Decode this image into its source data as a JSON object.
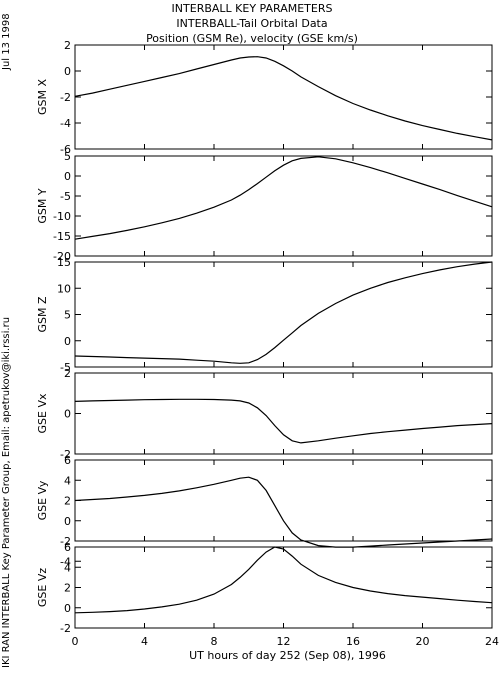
{
  "header": {
    "title_lines": [
      "INTERBALL KEY PARAMETERS",
      "INTERBALL-Tail Orbital Data",
      "Position (GSM Re), velocity (GSE km/s)"
    ]
  },
  "side": {
    "date": "Jul 13 1998",
    "credit": "IKI RAN INTERBALL Key Parameter Group, Email: apetrukov@iki.rssi.ru"
  },
  "chart_data": {
    "type": "line",
    "xlabel": "UT hours of day 252 (Sep 08), 1996",
    "xlim": [
      0,
      24
    ],
    "xticks": [
      0,
      4,
      8,
      12,
      16,
      20,
      24
    ],
    "x": [
      0,
      1,
      2,
      3,
      4,
      5,
      6,
      7,
      8,
      9,
      9.5,
      10,
      10.5,
      11,
      11.5,
      12,
      12.5,
      13,
      14,
      15,
      16,
      17,
      18,
      19,
      20,
      21,
      22,
      23,
      24
    ],
    "panels": [
      {
        "ylabel": "GSM X",
        "ylim": [
          -6,
          2
        ],
        "yticks": [
          2,
          0,
          -2,
          -4,
          -6
        ],
        "values": [
          -1.95,
          -1.7,
          -1.4,
          -1.1,
          -0.8,
          -0.5,
          -0.2,
          0.15,
          0.5,
          0.85,
          1.0,
          1.08,
          1.1,
          1.0,
          0.75,
          0.4,
          0.0,
          -0.45,
          -1.2,
          -1.9,
          -2.5,
          -3.0,
          -3.45,
          -3.85,
          -4.2,
          -4.5,
          -4.8,
          -5.05,
          -5.3
        ]
      },
      {
        "ylabel": "GSM Y",
        "ylim": [
          -20,
          5
        ],
        "yticks": [
          5,
          0,
          -5,
          -10,
          -15,
          -20
        ],
        "values": [
          -15.8,
          -15.1,
          -14.4,
          -13.6,
          -12.7,
          -11.7,
          -10.6,
          -9.3,
          -7.8,
          -6.0,
          -4.8,
          -3.4,
          -1.9,
          -0.3,
          1.3,
          2.7,
          3.8,
          4.4,
          4.8,
          4.3,
          3.3,
          2.1,
          0.8,
          -0.6,
          -2.0,
          -3.4,
          -4.9,
          -6.3,
          -7.7
        ]
      },
      {
        "ylabel": "GSM Z",
        "ylim": [
          -5,
          15
        ],
        "yticks": [
          15,
          10,
          5,
          0,
          -5
        ],
        "values": [
          -2.9,
          -3.0,
          -3.1,
          -3.2,
          -3.3,
          -3.4,
          -3.5,
          -3.7,
          -3.9,
          -4.2,
          -4.3,
          -4.2,
          -3.6,
          -2.6,
          -1.3,
          0.1,
          1.5,
          2.9,
          5.2,
          7.1,
          8.7,
          10.0,
          11.1,
          12.0,
          12.8,
          13.5,
          14.1,
          14.6,
          15.0
        ]
      },
      {
        "ylabel": "GSE Vx",
        "ylim": [
          -2,
          2
        ],
        "yticks": [
          2,
          0,
          -2
        ],
        "values": [
          0.6,
          0.62,
          0.64,
          0.66,
          0.68,
          0.69,
          0.7,
          0.7,
          0.69,
          0.66,
          0.62,
          0.52,
          0.28,
          -0.1,
          -0.6,
          -1.05,
          -1.35,
          -1.45,
          -1.35,
          -1.22,
          -1.1,
          -0.99,
          -0.9,
          -0.82,
          -0.74,
          -0.67,
          -0.6,
          -0.55,
          -0.5
        ]
      },
      {
        "ylabel": "GSE Vy",
        "ylim": [
          -2,
          6
        ],
        "yticks": [
          6,
          4,
          2,
          0,
          -2,
          -4
        ],
        "values": [
          2.0,
          2.1,
          2.2,
          2.35,
          2.5,
          2.7,
          2.95,
          3.25,
          3.6,
          4.0,
          4.2,
          4.3,
          4.0,
          3.0,
          1.5,
          0.0,
          -1.2,
          -1.9,
          -2.45,
          -2.6,
          -2.6,
          -2.5,
          -2.4,
          -2.3,
          -2.2,
          -2.1,
          -2.0,
          -1.9,
          -1.8
        ]
      },
      {
        "ylabel": "GSE Vz",
        "ylim": [
          -2,
          6
        ],
        "yticks": [
          6,
          4,
          2,
          0,
          -2
        ],
        "values": [
          -0.5,
          -0.45,
          -0.38,
          -0.28,
          -0.12,
          0.08,
          0.35,
          0.75,
          1.35,
          2.3,
          3.0,
          3.8,
          4.7,
          5.5,
          6.0,
          5.8,
          5.1,
          4.3,
          3.2,
          2.5,
          2.0,
          1.65,
          1.4,
          1.2,
          1.05,
          0.9,
          0.75,
          0.62,
          0.5
        ]
      }
    ]
  }
}
